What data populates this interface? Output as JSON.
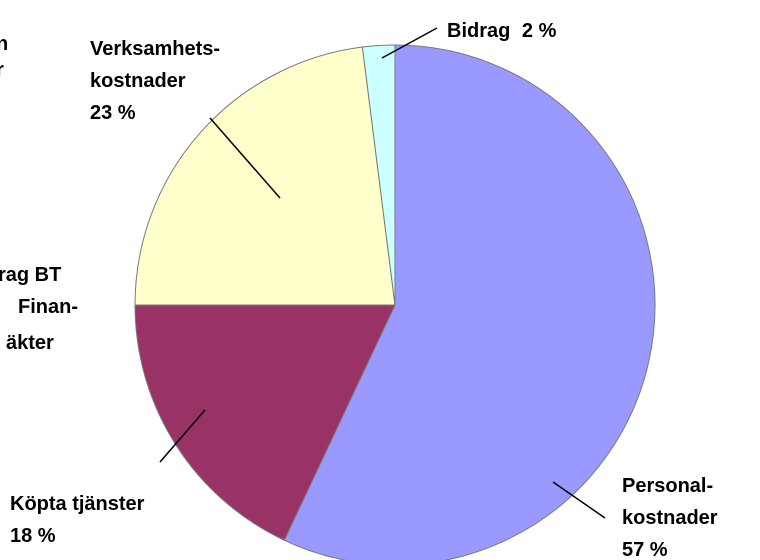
{
  "chart_data": {
    "type": "pie",
    "categories": [
      [
        "Personal-",
        "kostnader"
      ],
      [
        "Köpta tjänster"
      ],
      [
        "Verksamhets-",
        "kostnader"
      ],
      [
        "Bidrag"
      ]
    ],
    "values": [
      57,
      18,
      23,
      2
    ],
    "value_labels": [
      "57 %",
      "18 %",
      "23 %",
      "2 %"
    ],
    "colors": [
      "#9999ff",
      "#993366",
      "#ffffcc",
      "#ccffff"
    ],
    "annotations": [
      "rag BT",
      "Finan-",
      "äkter",
      "n",
      "r"
    ]
  }
}
